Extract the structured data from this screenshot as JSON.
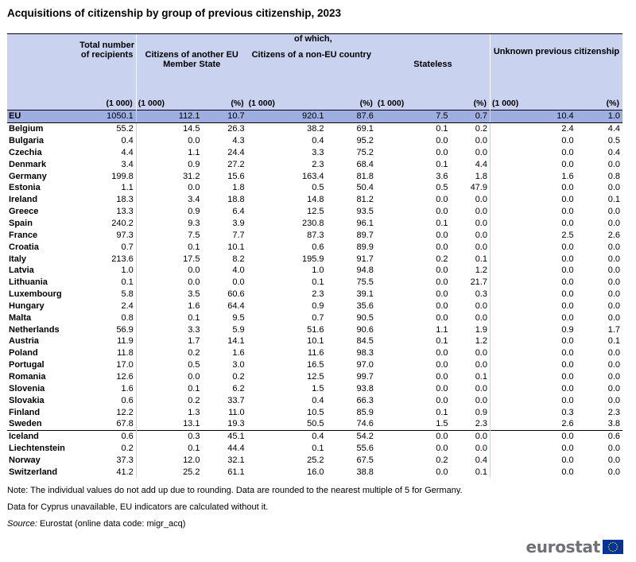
{
  "title": "Acquisitions of citizenship by group of previous citizenship, 2023",
  "header": {
    "of_which": "of which,",
    "total": "Total number of recipients",
    "eu_citizens": "Citizens of another EU Member State",
    "non_eu": "Citizens of a non-EU country",
    "stateless": "Stateless",
    "unknown": "Unknown previous citizenship",
    "unit_thousand": "(1 000)",
    "unit_percent": "(%)"
  },
  "rows": [
    {
      "country": "EU",
      "v": [
        "1050.1",
        "112.1",
        "10.7",
        "920.1",
        "87.6",
        "7.5",
        "0.7",
        "10.4",
        "1.0"
      ]
    },
    {
      "country": "Belgium",
      "v": [
        "55.2",
        "14.5",
        "26.3",
        "38.2",
        "69.1",
        "0.1",
        "0.2",
        "2.4",
        "4.4"
      ]
    },
    {
      "country": "Bulgaria",
      "v": [
        "0.4",
        "0.0",
        "4.3",
        "0.4",
        "95.2",
        "0.0",
        "0.0",
        "0.0",
        "0.5"
      ]
    },
    {
      "country": "Czechia",
      "v": [
        "4.4",
        "1.1",
        "24.4",
        "3.3",
        "75.2",
        "0.0",
        "0.0",
        "0.0",
        "0.4"
      ]
    },
    {
      "country": "Denmark",
      "v": [
        "3.4",
        "0.9",
        "27.2",
        "2.3",
        "68.4",
        "0.1",
        "4.4",
        "0.0",
        "0.0"
      ]
    },
    {
      "country": "Germany",
      "v": [
        "199.8",
        "31.2",
        "15.6",
        "163.4",
        "81.8",
        "3.6",
        "1.8",
        "1.6",
        "0.8"
      ]
    },
    {
      "country": "Estonia",
      "v": [
        "1.1",
        "0.0",
        "1.8",
        "0.5",
        "50.4",
        "0.5",
        "47.9",
        "0.0",
        "0.0"
      ]
    },
    {
      "country": "Ireland",
      "v": [
        "18.3",
        "3.4",
        "18.8",
        "14.8",
        "81.2",
        "0.0",
        "0.0",
        "0.0",
        "0.1"
      ]
    },
    {
      "country": "Greece",
      "v": [
        "13.3",
        "0.9",
        "6.4",
        "12.5",
        "93.5",
        "0.0",
        "0.0",
        "0.0",
        "0.0"
      ]
    },
    {
      "country": "Spain",
      "v": [
        "240.2",
        "9.3",
        "3.9",
        "230.8",
        "96.1",
        "0.1",
        "0.0",
        "0.0",
        "0.0"
      ]
    },
    {
      "country": "France",
      "v": [
        "97.3",
        "7.5",
        "7.7",
        "87.3",
        "89.7",
        "0.0",
        "0.0",
        "2.5",
        "2.6"
      ]
    },
    {
      "country": "Croatia",
      "v": [
        "0.7",
        "0.1",
        "10.1",
        "0.6",
        "89.9",
        "0.0",
        "0.0",
        "0.0",
        "0.0"
      ]
    },
    {
      "country": "Italy",
      "v": [
        "213.6",
        "17.5",
        "8.2",
        "195.9",
        "91.7",
        "0.2",
        "0.1",
        "0.0",
        "0.0"
      ]
    },
    {
      "country": "Latvia",
      "v": [
        "1.0",
        "0.0",
        "4.0",
        "1.0",
        "94.8",
        "0.0",
        "1.2",
        "0.0",
        "0.0"
      ]
    },
    {
      "country": "Lithuania",
      "v": [
        "0.1",
        "0.0",
        "0.0",
        "0.1",
        "75.5",
        "0.0",
        "21.7",
        "0.0",
        "0.0"
      ]
    },
    {
      "country": "Luxembourg",
      "v": [
        "5.8",
        "3.5",
        "60.6",
        "2.3",
        "39.1",
        "0.0",
        "0.3",
        "0.0",
        "0.0"
      ]
    },
    {
      "country": "Hungary",
      "v": [
        "2.4",
        "1.6",
        "64.4",
        "0.9",
        "35.6",
        "0.0",
        "0.0",
        "0.0",
        "0.0"
      ]
    },
    {
      "country": "Malta",
      "v": [
        "0.8",
        "0.1",
        "9.5",
        "0.7",
        "90.5",
        "0.0",
        "0.0",
        "0.0",
        "0.0"
      ]
    },
    {
      "country": "Netherlands",
      "v": [
        "56.9",
        "3.3",
        "5.9",
        "51.6",
        "90.6",
        "1.1",
        "1.9",
        "0.9",
        "1.7"
      ]
    },
    {
      "country": "Austria",
      "v": [
        "11.9",
        "1.7",
        "14.1",
        "10.1",
        "84.5",
        "0.1",
        "1.2",
        "0.0",
        "0.1"
      ]
    },
    {
      "country": "Poland",
      "v": [
        "11.8",
        "0.2",
        "1.6",
        "11.6",
        "98.3",
        "0.0",
        "0.0",
        "0.0",
        "0.0"
      ]
    },
    {
      "country": "Portugal",
      "v": [
        "17.0",
        "0.5",
        "3.0",
        "16.5",
        "97.0",
        "0.0",
        "0.0",
        "0.0",
        "0.0"
      ]
    },
    {
      "country": "Romania",
      "v": [
        "12.6",
        "0.0",
        "0.2",
        "12.5",
        "99.7",
        "0.0",
        "0.1",
        "0.0",
        "0.0"
      ]
    },
    {
      "country": "Slovenia",
      "v": [
        "1.6",
        "0.1",
        "6.2",
        "1.5",
        "93.8",
        "0.0",
        "0.0",
        "0.0",
        "0.0"
      ]
    },
    {
      "country": "Slovakia",
      "v": [
        "0.6",
        "0.2",
        "33.7",
        "0.4",
        "66.3",
        "0.0",
        "0.0",
        "0.0",
        "0.0"
      ]
    },
    {
      "country": "Finland",
      "v": [
        "12.2",
        "1.3",
        "11.0",
        "10.5",
        "85.9",
        "0.1",
        "0.9",
        "0.3",
        "2.3"
      ]
    },
    {
      "country": "Sweden",
      "v": [
        "67.8",
        "13.1",
        "19.3",
        "50.5",
        "74.6",
        "1.5",
        "2.3",
        "2.6",
        "3.8"
      ]
    },
    {
      "country": "Iceland",
      "v": [
        "0.6",
        "0.3",
        "45.1",
        "0.4",
        "54.2",
        "0.0",
        "0.0",
        "0.0",
        "0.6"
      ]
    },
    {
      "country": "Liechtenstein",
      "v": [
        "0.2",
        "0.1",
        "44.4",
        "0.1",
        "55.6",
        "0.0",
        "0.0",
        "0.0",
        "0.0"
      ]
    },
    {
      "country": "Norway",
      "v": [
        "37.3",
        "12.0",
        "32.1",
        "25.2",
        "67.5",
        "0.2",
        "0.4",
        "0.0",
        "0.0"
      ]
    },
    {
      "country": "Switzerland",
      "v": [
        "41.2",
        "25.2",
        "61.1",
        "16.0",
        "38.8",
        "0.0",
        "0.1",
        "0.0",
        "0.0"
      ]
    }
  ],
  "notes": {
    "note1": "Note: The individual values do not add up due to rounding. Data are rounded to the nearest multiple of 5 for Germany.",
    "note2": "Data for Cyprus unavailable, EU indicators are calculated without it.",
    "source_label": "Source:",
    "source_text": " Eurostat (online data code: migr_acq)"
  },
  "logo": {
    "text": "eurostat",
    "flag_icon": "eu-flag-icon",
    "flag_color": "#003399",
    "star_color": "#ffcc00"
  }
}
